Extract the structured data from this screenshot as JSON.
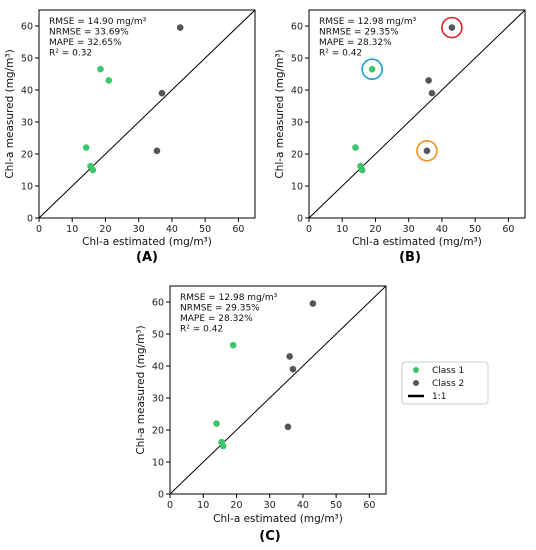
{
  "chart_data": [
    {
      "type": "scatter",
      "panel_label": "(A)",
      "xlabel": "Chl-a estimated (mg/m³)",
      "ylabel": "Chl-a measured (mg/m³)",
      "xlim": [
        0,
        65
      ],
      "ylim": [
        0,
        65
      ],
      "xticks": [
        "0",
        "10",
        "20",
        "30",
        "40",
        "50",
        "60"
      ],
      "yticks": [
        "0",
        "10",
        "20",
        "30",
        "40",
        "50",
        "60"
      ],
      "reference_line": "1:1",
      "stats": [
        "RMSE = 14.90 mg/m³",
        "NRMSE = 33.69%",
        "MAPE = 32.65%",
        "R² = 0.32"
      ],
      "series": [
        {
          "name": "Class 1",
          "color": "#3cc56a",
          "points": [
            [
              14.2,
              22
            ],
            [
              15.5,
              16.2
            ],
            [
              16.2,
              15
            ],
            [
              18.5,
              46.5
            ],
            [
              21,
              43
            ]
          ]
        },
        {
          "name": "Class 2",
          "color": "#555555",
          "points": [
            [
              35.5,
              21
            ],
            [
              37,
              39
            ],
            [
              42.5,
              59.5
            ]
          ]
        }
      ],
      "highlights": []
    },
    {
      "type": "scatter",
      "panel_label": "(B)",
      "xlabel": "Chl-a estimated (mg/m³)",
      "ylabel": "Chl-a measured (mg/m³)",
      "xlim": [
        0,
        65
      ],
      "ylim": [
        0,
        65
      ],
      "xticks": [
        "0",
        "10",
        "20",
        "30",
        "40",
        "50",
        "60"
      ],
      "yticks": [
        "0",
        "10",
        "20",
        "30",
        "40",
        "50",
        "60"
      ],
      "reference_line": "1:1",
      "stats": [
        "RMSE = 12.98 mg/m³",
        "NRMSE = 29.35%",
        "MAPE = 28.32%",
        "R² = 0.42"
      ],
      "series": [
        {
          "name": "Class 1",
          "color": "#3cc56a",
          "points": [
            [
              14,
              22
            ],
            [
              15.5,
              16.2
            ],
            [
              16,
              15
            ],
            [
              19,
              46.5
            ]
          ]
        },
        {
          "name": "Class 2",
          "color": "#555555",
          "points": [
            [
              35.5,
              21
            ],
            [
              36,
              43
            ],
            [
              37,
              39
            ],
            [
              43,
              59.5
            ]
          ]
        }
      ],
      "highlights": [
        {
          "point": [
            19,
            46.5
          ],
          "color": "#1a9fd8"
        },
        {
          "point": [
            43,
            59.5
          ],
          "color": "#e0202a"
        },
        {
          "point": [
            35.5,
            21
          ],
          "color": "#f0901e"
        }
      ]
    },
    {
      "type": "scatter",
      "panel_label": "(C)",
      "xlabel": "Chl-a estimated (mg/m³)",
      "ylabel": "Chl-a measured (mg/m³)",
      "xlim": [
        0,
        65
      ],
      "ylim": [
        0,
        65
      ],
      "xticks": [
        "0",
        "10",
        "20",
        "30",
        "40",
        "50",
        "60"
      ],
      "yticks": [
        "0",
        "10",
        "20",
        "30",
        "40",
        "50",
        "60"
      ],
      "reference_line": "1:1",
      "stats": [
        "RMSE = 12.98 mg/m³",
        "NRMSE = 29.35%",
        "MAPE = 28.32%",
        "R² = 0.42"
      ],
      "series": [
        {
          "name": "Class 1",
          "color": "#3cc56a",
          "points": [
            [
              14,
              22
            ],
            [
              15.5,
              16.2
            ],
            [
              16,
              15
            ],
            [
              19,
              46.5
            ]
          ]
        },
        {
          "name": "Class 2",
          "color": "#555555",
          "points": [
            [
              35.5,
              21
            ],
            [
              36,
              43
            ],
            [
              37,
              39
            ],
            [
              43,
              59.5
            ]
          ]
        }
      ],
      "highlights": []
    }
  ],
  "legend": {
    "placement": "right",
    "items": [
      {
        "label": "Class 1",
        "kind": "marker",
        "color": "#3cc56a"
      },
      {
        "label": "Class 2",
        "kind": "marker",
        "color": "#555555"
      },
      {
        "label": "1:1",
        "kind": "line",
        "color": "#000000"
      }
    ]
  }
}
